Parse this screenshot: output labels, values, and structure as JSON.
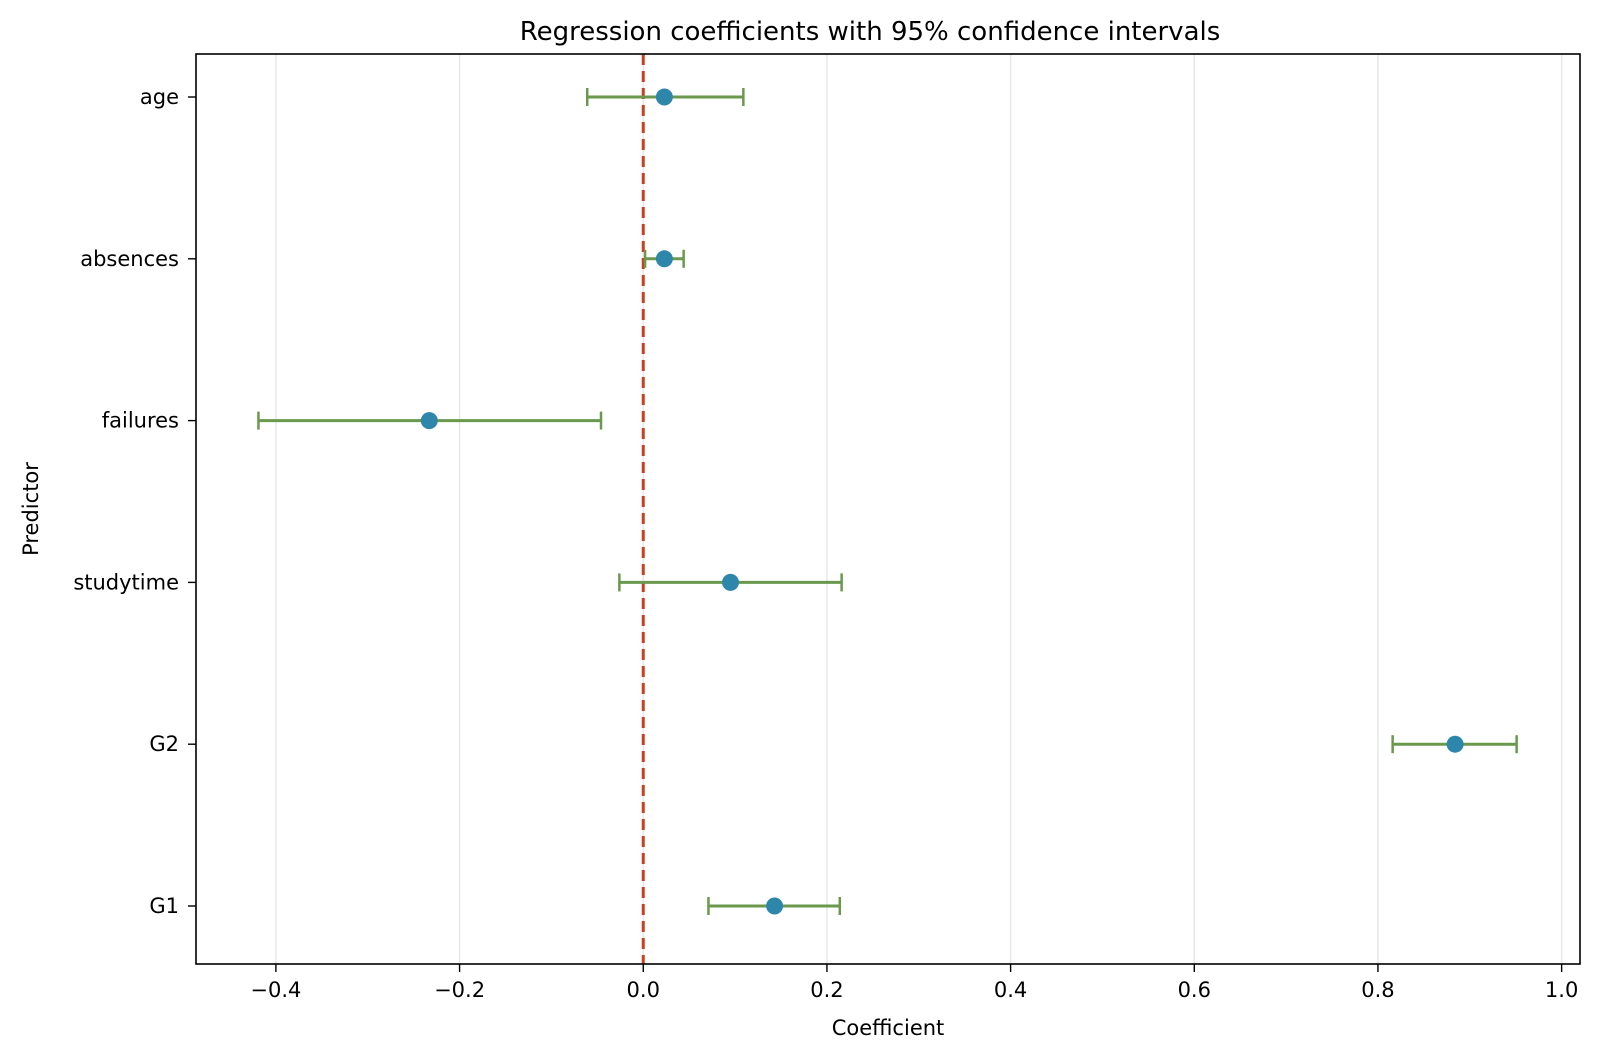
{
  "chart_data": {
    "type": "errorbar",
    "title": "Regression coefficients with 95% confidence intervals",
    "xlabel": "Coefficient",
    "ylabel": "Predictor",
    "xlim": [
      -0.487,
      1.02
    ],
    "xticks": [
      -0.4,
      -0.2,
      0.0,
      0.2,
      0.4,
      0.6,
      0.8,
      1.0
    ],
    "xtick_labels": [
      "−0.4",
      "−0.2",
      "0.0",
      "0.2",
      "0.4",
      "0.6",
      "0.8",
      "1.0"
    ],
    "grid": "x-major",
    "reference_line": {
      "x": 0.0,
      "style": "dashed",
      "color": "#c8401e"
    },
    "colors": {
      "point": "#2e86ab",
      "errorbar": "#6a994e",
      "grid": "#e6e6e6"
    },
    "predictors": [
      {
        "name": "age",
        "coef": 0.023,
        "ci_low": -0.061,
        "ci_high": 0.109
      },
      {
        "name": "absences",
        "coef": 0.023,
        "ci_low": 0.002,
        "ci_high": 0.044
      },
      {
        "name": "failures",
        "coef": -0.233,
        "ci_low": -0.419,
        "ci_high": -0.046
      },
      {
        "name": "studytime",
        "coef": 0.095,
        "ci_low": -0.026,
        "ci_high": 0.216
      },
      {
        "name": "G2",
        "coef": 0.884,
        "ci_low": 0.816,
        "ci_high": 0.951
      },
      {
        "name": "G1",
        "coef": 0.143,
        "ci_low": 0.071,
        "ci_high": 0.214
      }
    ]
  }
}
